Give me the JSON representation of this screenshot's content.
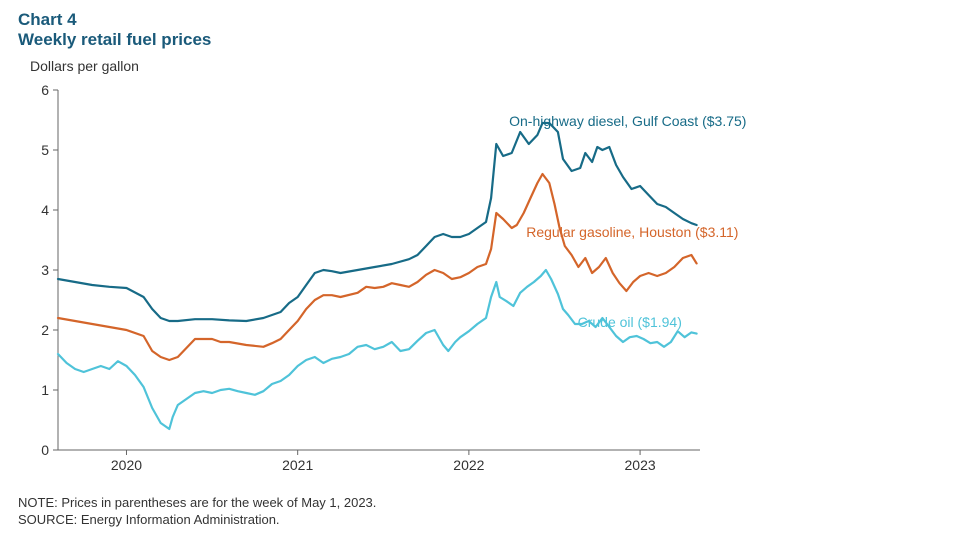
{
  "chart": {
    "number_label": "Chart 4",
    "title": "Weekly retail fuel prices",
    "y_axis_title": "Dollars per gallon",
    "title_color": "#1a5a7a",
    "title_fontsize": 17,
    "axis_label_fontsize": 14,
    "note_line1": "NOTE: Prices in parentheses are for the week of May 1, 2023.",
    "note_line2": "SOURCE: Energy Information Administration.",
    "background_color": "#ffffff",
    "axis_color": "#666666",
    "text_color": "#333333",
    "line_width": 2.2,
    "ylim": [
      0,
      6
    ],
    "ytick_step": 1,
    "yticks": [
      0,
      1,
      2,
      3,
      4,
      5,
      6
    ],
    "xlim": [
      2019.6,
      2023.35
    ],
    "xticks": [
      2020,
      2021,
      2022,
      2023
    ],
    "xtick_labels": [
      "2020",
      "2021",
      "2022",
      "2023"
    ],
    "series": [
      {
        "id": "diesel",
        "label": "On-highway  diesel, Gulf Coast ($3.75)",
        "color": "#176b87",
        "label_x": 2022.2,
        "label_y": 5.4,
        "data": [
          [
            2019.6,
            2.85
          ],
          [
            2019.7,
            2.8
          ],
          [
            2019.8,
            2.75
          ],
          [
            2019.9,
            2.72
          ],
          [
            2020.0,
            2.7
          ],
          [
            2020.1,
            2.55
          ],
          [
            2020.15,
            2.35
          ],
          [
            2020.2,
            2.2
          ],
          [
            2020.25,
            2.15
          ],
          [
            2020.3,
            2.15
          ],
          [
            2020.4,
            2.18
          ],
          [
            2020.5,
            2.18
          ],
          [
            2020.6,
            2.16
          ],
          [
            2020.7,
            2.15
          ],
          [
            2020.8,
            2.2
          ],
          [
            2020.9,
            2.3
          ],
          [
            2020.95,
            2.45
          ],
          [
            2021.0,
            2.55
          ],
          [
            2021.05,
            2.75
          ],
          [
            2021.1,
            2.95
          ],
          [
            2021.15,
            3.0
          ],
          [
            2021.2,
            2.98
          ],
          [
            2021.25,
            2.95
          ],
          [
            2021.35,
            3.0
          ],
          [
            2021.45,
            3.05
          ],
          [
            2021.55,
            3.1
          ],
          [
            2021.65,
            3.18
          ],
          [
            2021.7,
            3.25
          ],
          [
            2021.75,
            3.4
          ],
          [
            2021.8,
            3.55
          ],
          [
            2021.85,
            3.6
          ],
          [
            2021.9,
            3.55
          ],
          [
            2021.95,
            3.55
          ],
          [
            2022.0,
            3.6
          ],
          [
            2022.05,
            3.7
          ],
          [
            2022.1,
            3.8
          ],
          [
            2022.13,
            4.2
          ],
          [
            2022.16,
            5.1
          ],
          [
            2022.2,
            4.9
          ],
          [
            2022.25,
            4.95
          ],
          [
            2022.3,
            5.3
          ],
          [
            2022.35,
            5.1
          ],
          [
            2022.4,
            5.25
          ],
          [
            2022.43,
            5.45
          ],
          [
            2022.47,
            5.45
          ],
          [
            2022.52,
            5.3
          ],
          [
            2022.55,
            4.85
          ],
          [
            2022.6,
            4.65
          ],
          [
            2022.65,
            4.7
          ],
          [
            2022.68,
            4.95
          ],
          [
            2022.72,
            4.8
          ],
          [
            2022.75,
            5.05
          ],
          [
            2022.78,
            5.0
          ],
          [
            2022.82,
            5.05
          ],
          [
            2022.86,
            4.75
          ],
          [
            2022.9,
            4.55
          ],
          [
            2022.95,
            4.35
          ],
          [
            2023.0,
            4.4
          ],
          [
            2023.05,
            4.25
          ],
          [
            2023.1,
            4.1
          ],
          [
            2023.15,
            4.05
          ],
          [
            2023.2,
            3.95
          ],
          [
            2023.25,
            3.85
          ],
          [
            2023.3,
            3.78
          ],
          [
            2023.33,
            3.75
          ]
        ]
      },
      {
        "id": "gasoline",
        "label": "Regular gasoline, Houston ($3.11)",
        "color": "#d4652a",
        "label_x": 2022.3,
        "label_y": 3.55,
        "data": [
          [
            2019.6,
            2.2
          ],
          [
            2019.7,
            2.15
          ],
          [
            2019.8,
            2.1
          ],
          [
            2019.9,
            2.05
          ],
          [
            2020.0,
            2.0
          ],
          [
            2020.1,
            1.9
          ],
          [
            2020.15,
            1.65
          ],
          [
            2020.2,
            1.55
          ],
          [
            2020.25,
            1.5
          ],
          [
            2020.3,
            1.55
          ],
          [
            2020.35,
            1.7
          ],
          [
            2020.4,
            1.85
          ],
          [
            2020.5,
            1.85
          ],
          [
            2020.55,
            1.8
          ],
          [
            2020.6,
            1.8
          ],
          [
            2020.7,
            1.75
          ],
          [
            2020.8,
            1.72
          ],
          [
            2020.85,
            1.78
          ],
          [
            2020.9,
            1.85
          ],
          [
            2020.95,
            2.0
          ],
          [
            2021.0,
            2.15
          ],
          [
            2021.05,
            2.35
          ],
          [
            2021.1,
            2.5
          ],
          [
            2021.15,
            2.58
          ],
          [
            2021.2,
            2.58
          ],
          [
            2021.25,
            2.55
          ],
          [
            2021.35,
            2.62
          ],
          [
            2021.4,
            2.72
          ],
          [
            2021.45,
            2.7
          ],
          [
            2021.5,
            2.72
          ],
          [
            2021.55,
            2.78
          ],
          [
            2021.6,
            2.75
          ],
          [
            2021.65,
            2.72
          ],
          [
            2021.7,
            2.8
          ],
          [
            2021.75,
            2.92
          ],
          [
            2021.8,
            3.0
          ],
          [
            2021.85,
            2.95
          ],
          [
            2021.9,
            2.85
          ],
          [
            2021.95,
            2.88
          ],
          [
            2022.0,
            2.95
          ],
          [
            2022.05,
            3.05
          ],
          [
            2022.1,
            3.1
          ],
          [
            2022.13,
            3.35
          ],
          [
            2022.16,
            3.95
          ],
          [
            2022.2,
            3.85
          ],
          [
            2022.25,
            3.7
          ],
          [
            2022.28,
            3.75
          ],
          [
            2022.32,
            3.95
          ],
          [
            2022.36,
            4.2
          ],
          [
            2022.4,
            4.45
          ],
          [
            2022.43,
            4.6
          ],
          [
            2022.47,
            4.45
          ],
          [
            2022.5,
            4.1
          ],
          [
            2022.53,
            3.7
          ],
          [
            2022.56,
            3.4
          ],
          [
            2022.6,
            3.25
          ],
          [
            2022.64,
            3.05
          ],
          [
            2022.68,
            3.2
          ],
          [
            2022.72,
            2.95
          ],
          [
            2022.76,
            3.05
          ],
          [
            2022.8,
            3.2
          ],
          [
            2022.84,
            2.95
          ],
          [
            2022.88,
            2.78
          ],
          [
            2022.92,
            2.65
          ],
          [
            2022.96,
            2.8
          ],
          [
            2023.0,
            2.9
          ],
          [
            2023.05,
            2.95
          ],
          [
            2023.1,
            2.9
          ],
          [
            2023.15,
            2.95
          ],
          [
            2023.2,
            3.05
          ],
          [
            2023.25,
            3.2
          ],
          [
            2023.3,
            3.25
          ],
          [
            2023.33,
            3.11
          ]
        ]
      },
      {
        "id": "crude",
        "label": "Crude oil ($1.94)",
        "color": "#4fc3d9",
        "label_x": 2022.6,
        "label_y": 2.05,
        "data": [
          [
            2019.6,
            1.6
          ],
          [
            2019.65,
            1.45
          ],
          [
            2019.7,
            1.35
          ],
          [
            2019.75,
            1.3
          ],
          [
            2019.8,
            1.35
          ],
          [
            2019.85,
            1.4
          ],
          [
            2019.9,
            1.35
          ],
          [
            2019.95,
            1.48
          ],
          [
            2020.0,
            1.4
          ],
          [
            2020.05,
            1.25
          ],
          [
            2020.1,
            1.05
          ],
          [
            2020.15,
            0.7
          ],
          [
            2020.2,
            0.45
          ],
          [
            2020.25,
            0.35
          ],
          [
            2020.27,
            0.55
          ],
          [
            2020.3,
            0.75
          ],
          [
            2020.35,
            0.85
          ],
          [
            2020.4,
            0.95
          ],
          [
            2020.45,
            0.98
          ],
          [
            2020.5,
            0.95
          ],
          [
            2020.55,
            1.0
          ],
          [
            2020.6,
            1.02
          ],
          [
            2020.65,
            0.98
          ],
          [
            2020.7,
            0.95
          ],
          [
            2020.75,
            0.92
          ],
          [
            2020.8,
            0.98
          ],
          [
            2020.85,
            1.1
          ],
          [
            2020.9,
            1.15
          ],
          [
            2020.95,
            1.25
          ],
          [
            2021.0,
            1.4
          ],
          [
            2021.05,
            1.5
          ],
          [
            2021.1,
            1.55
          ],
          [
            2021.15,
            1.45
          ],
          [
            2021.2,
            1.52
          ],
          [
            2021.25,
            1.55
          ],
          [
            2021.3,
            1.6
          ],
          [
            2021.35,
            1.72
          ],
          [
            2021.4,
            1.75
          ],
          [
            2021.45,
            1.68
          ],
          [
            2021.5,
            1.72
          ],
          [
            2021.55,
            1.8
          ],
          [
            2021.6,
            1.65
          ],
          [
            2021.65,
            1.68
          ],
          [
            2021.7,
            1.82
          ],
          [
            2021.75,
            1.95
          ],
          [
            2021.8,
            2.0
          ],
          [
            2021.85,
            1.75
          ],
          [
            2021.88,
            1.65
          ],
          [
            2021.92,
            1.8
          ],
          [
            2021.95,
            1.88
          ],
          [
            2022.0,
            1.98
          ],
          [
            2022.05,
            2.1
          ],
          [
            2022.1,
            2.2
          ],
          [
            2022.13,
            2.55
          ],
          [
            2022.16,
            2.8
          ],
          [
            2022.18,
            2.55
          ],
          [
            2022.22,
            2.48
          ],
          [
            2022.26,
            2.4
          ],
          [
            2022.3,
            2.62
          ],
          [
            2022.34,
            2.72
          ],
          [
            2022.38,
            2.8
          ],
          [
            2022.42,
            2.9
          ],
          [
            2022.45,
            3.0
          ],
          [
            2022.48,
            2.85
          ],
          [
            2022.52,
            2.6
          ],
          [
            2022.55,
            2.35
          ],
          [
            2022.58,
            2.25
          ],
          [
            2022.62,
            2.1
          ],
          [
            2022.66,
            2.1
          ],
          [
            2022.7,
            2.15
          ],
          [
            2022.74,
            2.05
          ],
          [
            2022.78,
            2.2
          ],
          [
            2022.82,
            2.05
          ],
          [
            2022.86,
            1.9
          ],
          [
            2022.9,
            1.8
          ],
          [
            2022.94,
            1.88
          ],
          [
            2022.98,
            1.9
          ],
          [
            2023.02,
            1.85
          ],
          [
            2023.06,
            1.78
          ],
          [
            2023.1,
            1.8
          ],
          [
            2023.14,
            1.72
          ],
          [
            2023.18,
            1.8
          ],
          [
            2023.22,
            1.98
          ],
          [
            2023.26,
            1.88
          ],
          [
            2023.3,
            1.96
          ],
          [
            2023.33,
            1.94
          ]
        ]
      }
    ]
  }
}
